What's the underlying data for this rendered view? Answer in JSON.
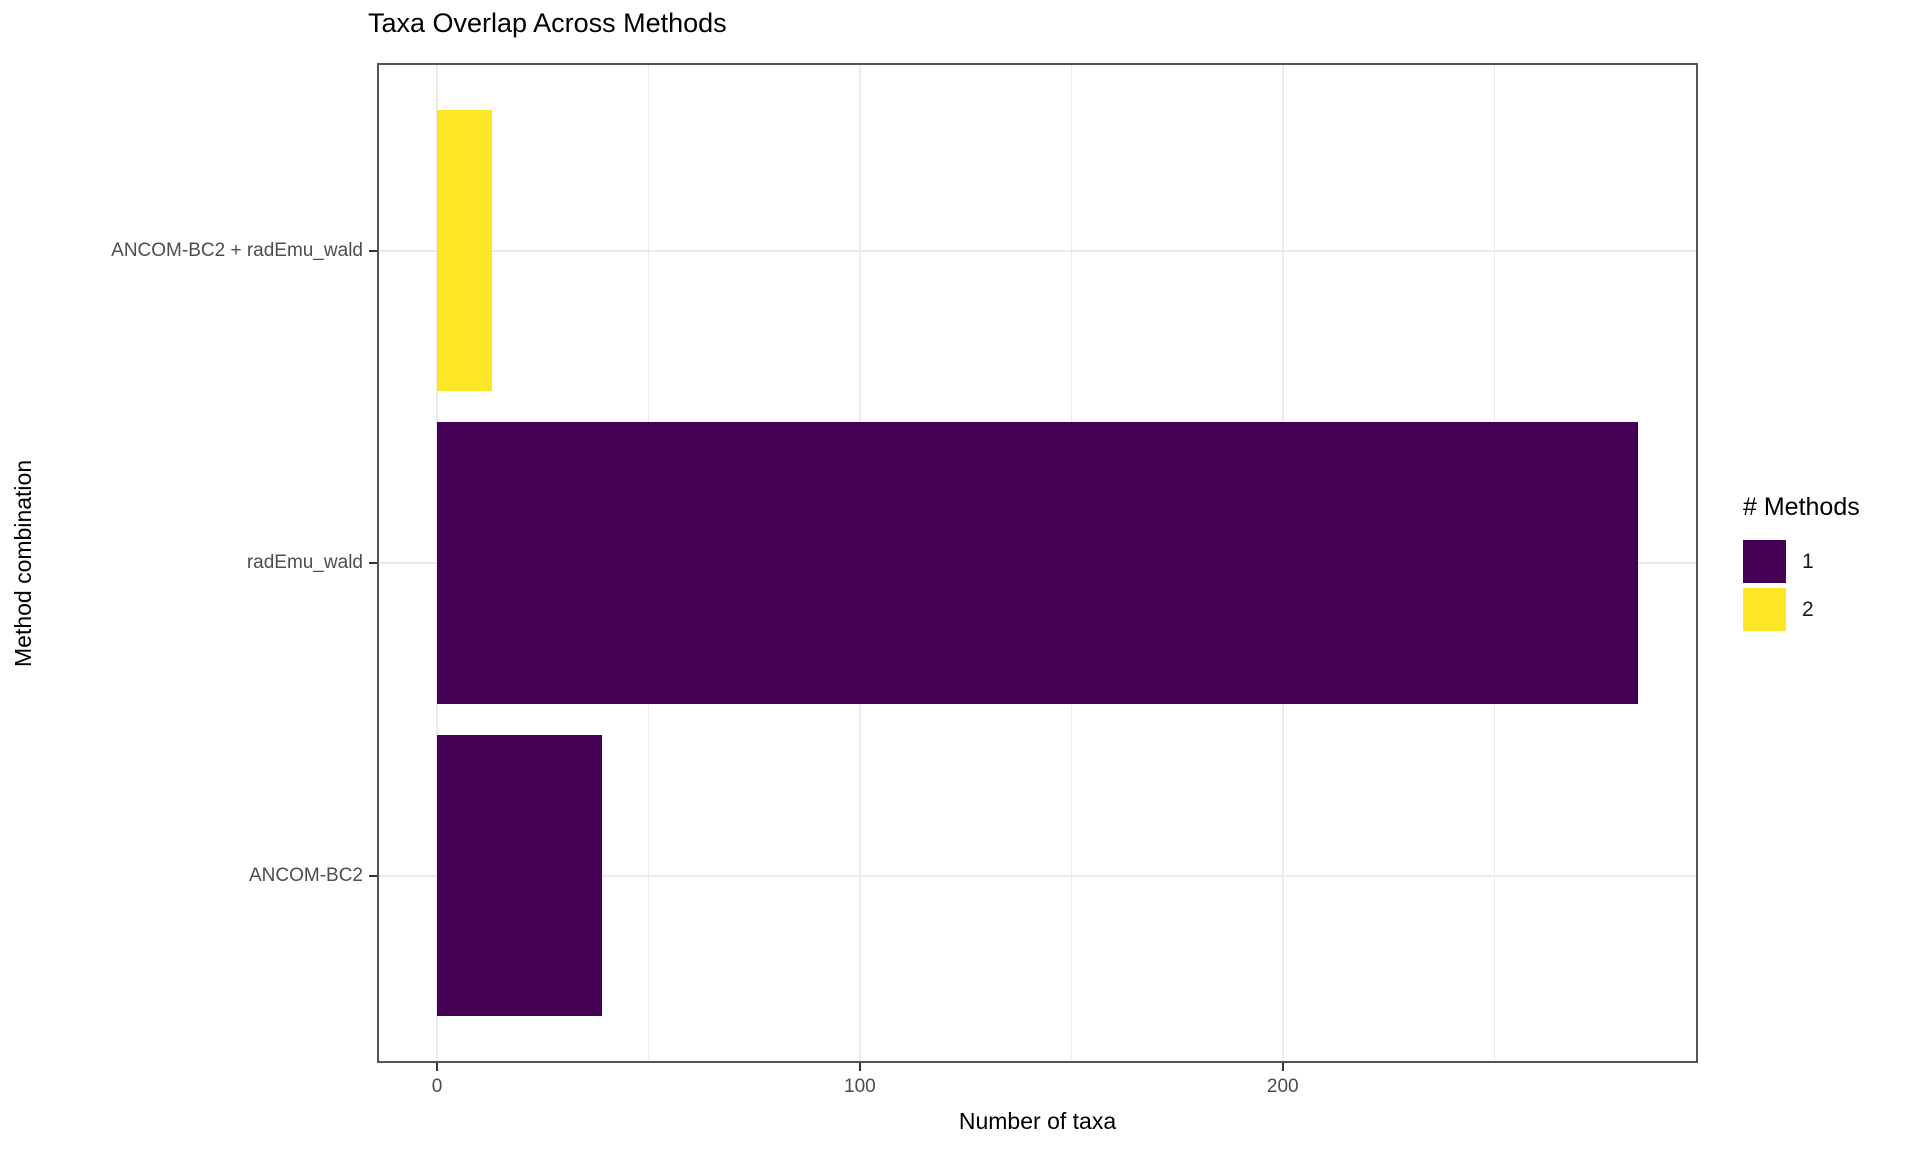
{
  "chart_data": {
    "type": "bar",
    "orientation": "horizontal",
    "title": "Taxa Overlap Across Methods",
    "xlabel": "Number of taxa",
    "ylabel": "Method combination",
    "categories": [
      "ANCOM-BC2 + radEmu_wald",
      "radEmu_wald",
      "ANCOM-BC2"
    ],
    "series": [
      {
        "name": "Number of taxa",
        "values": [
          13,
          284,
          39
        ]
      }
    ],
    "bar_colors": [
      "#FDE725",
      "#440154",
      "#440154"
    ],
    "num_methods_per_bar": [
      "2",
      "1",
      "1"
    ],
    "x_ticks": [
      0,
      100,
      200
    ],
    "x_minor_ticks": [
      50,
      150,
      250
    ],
    "xlim": [
      0,
      284
    ],
    "bar_width_fraction": 0.9,
    "grid": "major-vertical, minor-vertical, horizontal-at-categories",
    "legend": {
      "title": "# Methods",
      "position": "right",
      "entries": [
        {
          "label": "1",
          "color": "#440154"
        },
        {
          "label": "2",
          "color": "#FDE725"
        }
      ]
    },
    "theme": {
      "background": "#FFFFFF",
      "panel_border_color": "#545454",
      "grid_color": "#EBEBEB",
      "tick_mark_color": "#333333",
      "axis_text_color": "#4D4D4D",
      "title_color": "#000000"
    }
  }
}
